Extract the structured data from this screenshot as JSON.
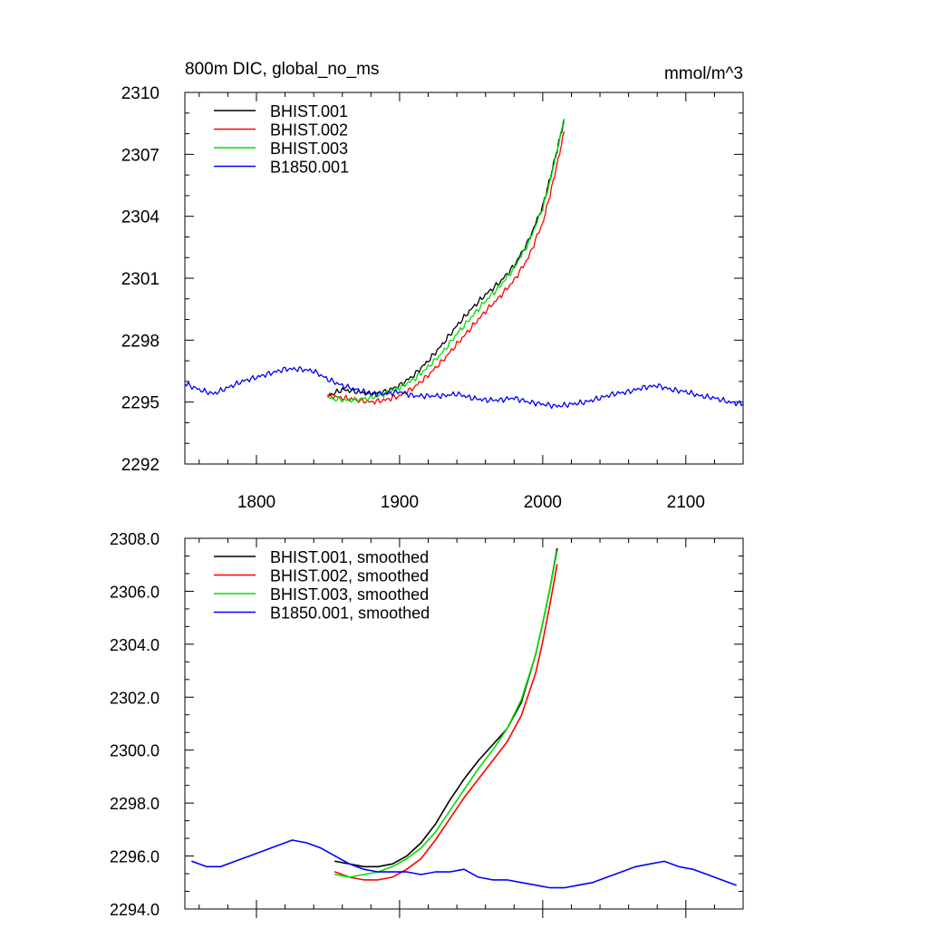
{
  "chart_data": [
    {
      "type": "line",
      "title": "800m DIC, global_no_ms",
      "units": "mmol/m^3",
      "xlim": [
        1750,
        2140
      ],
      "ylim": [
        2292,
        2310
      ],
      "xticks": [
        1800,
        1900,
        2000,
        2100
      ],
      "xtick_labels": [
        "1800",
        "1900",
        "2000",
        "2100"
      ],
      "yticks": [
        2292,
        2295,
        2298,
        2301,
        2304,
        2307,
        2310
      ],
      "ytick_labels": [
        "2292",
        "2295",
        "2298",
        "2301",
        "2304",
        "2307",
        "2310"
      ],
      "legend": "top-left",
      "series": [
        {
          "name": "BHIST.001",
          "color": "#000000",
          "x": [
            1850,
            1860,
            1870,
            1880,
            1890,
            1900,
            1910,
            1920,
            1930,
            1940,
            1950,
            1960,
            1970,
            1980,
            1990,
            2000,
            2005,
            2010,
            2015
          ],
          "y": [
            2295.3,
            2295.6,
            2295.5,
            2295.4,
            2295.5,
            2295.8,
            2296.3,
            2297.0,
            2297.8,
            2298.7,
            2299.5,
            2300.2,
            2300.8,
            2301.6,
            2302.8,
            2304.5,
            2305.8,
            2307.2,
            2308.7
          ]
        },
        {
          "name": "BHIST.002",
          "color": "#ff0000",
          "x": [
            1850,
            1860,
            1870,
            1880,
            1890,
            1900,
            1910,
            1920,
            1930,
            1940,
            1950,
            1960,
            1970,
            1980,
            1990,
            2000,
            2005,
            2010,
            2015
          ],
          "y": [
            2295.3,
            2295.2,
            2295.1,
            2295.0,
            2295.1,
            2295.3,
            2295.7,
            2296.3,
            2297.0,
            2297.8,
            2298.6,
            2299.4,
            2300.1,
            2300.9,
            2302.0,
            2303.7,
            2305.0,
            2306.5,
            2308.1
          ]
        },
        {
          "name": "BHIST.003",
          "color": "#00e000",
          "x": [
            1850,
            1860,
            1870,
            1880,
            1890,
            1900,
            1910,
            1920,
            1930,
            1940,
            1950,
            1960,
            1970,
            1980,
            1990,
            2000,
            2005,
            2010,
            2015
          ],
          "y": [
            2295.2,
            2295.1,
            2295.1,
            2295.2,
            2295.4,
            2295.7,
            2296.1,
            2296.7,
            2297.4,
            2298.3,
            2299.1,
            2299.9,
            2300.6,
            2301.5,
            2302.7,
            2304.4,
            2305.7,
            2307.2,
            2308.7
          ]
        },
        {
          "name": "B1850.001",
          "color": "#0000ff",
          "x": [
            1750,
            1760,
            1770,
            1780,
            1790,
            1800,
            1810,
            1820,
            1830,
            1840,
            1850,
            1860,
            1870,
            1880,
            1890,
            1900,
            1910,
            1920,
            1930,
            1940,
            1950,
            1960,
            1970,
            1980,
            1990,
            2000,
            2010,
            2020,
            2030,
            2040,
            2050,
            2060,
            2070,
            2080,
            2090,
            2100,
            2110,
            2120,
            2130,
            2140
          ],
          "y": [
            2295.9,
            2295.6,
            2295.4,
            2295.7,
            2296.0,
            2296.2,
            2296.4,
            2296.6,
            2296.6,
            2296.5,
            2296.1,
            2295.8,
            2295.6,
            2295.4,
            2295.4,
            2295.5,
            2295.3,
            2295.3,
            2295.3,
            2295.4,
            2295.2,
            2295.1,
            2295.1,
            2295.2,
            2295.0,
            2294.9,
            2294.8,
            2294.9,
            2295.0,
            2295.2,
            2295.4,
            2295.5,
            2295.7,
            2295.8,
            2295.6,
            2295.5,
            2295.3,
            2295.2,
            2295.0,
            2294.9
          ]
        }
      ]
    },
    {
      "type": "line",
      "xlim": [
        1750,
        2140
      ],
      "ylim": [
        2294,
        2308
      ],
      "xticks": [
        1800,
        1900,
        2000,
        2100
      ],
      "xtick_labels": [],
      "yticks": [
        2294,
        2296,
        2298,
        2300,
        2302,
        2304,
        2306,
        2308
      ],
      "ytick_labels": [
        "2294.0",
        "2296.0",
        "2298.0",
        "2300.0",
        "2302.0",
        "2304.0",
        "2306.0",
        "2308.0"
      ],
      "legend": "top-left",
      "series": [
        {
          "name": "BHIST.001, smoothed",
          "color": "#000000",
          "x": [
            1855,
            1865,
            1875,
            1885,
            1895,
            1905,
            1915,
            1925,
            1935,
            1945,
            1955,
            1965,
            1975,
            1985,
            1995,
            2000,
            2005,
            2010
          ],
          "y": [
            2295.8,
            2295.7,
            2295.6,
            2295.6,
            2295.7,
            2296.0,
            2296.5,
            2297.2,
            2298.1,
            2298.9,
            2299.6,
            2300.2,
            2300.8,
            2301.8,
            2303.6,
            2304.8,
            2306.1,
            2307.6
          ]
        },
        {
          "name": "BHIST.002, smoothed",
          "color": "#ff0000",
          "x": [
            1855,
            1865,
            1875,
            1885,
            1895,
            1905,
            1915,
            1925,
            1935,
            1945,
            1955,
            1965,
            1975,
            1985,
            1995,
            2000,
            2005,
            2010
          ],
          "y": [
            2295.4,
            2295.2,
            2295.1,
            2295.1,
            2295.2,
            2295.5,
            2295.9,
            2296.6,
            2297.4,
            2298.2,
            2298.9,
            2299.6,
            2300.3,
            2301.3,
            2302.9,
            2304.1,
            2305.5,
            2307.0
          ]
        },
        {
          "name": "BHIST.003, smoothed",
          "color": "#00e000",
          "x": [
            1855,
            1865,
            1875,
            1885,
            1895,
            1905,
            1915,
            1925,
            1935,
            1945,
            1955,
            1965,
            1975,
            1985,
            1995,
            2000,
            2005,
            2010
          ],
          "y": [
            2295.3,
            2295.2,
            2295.3,
            2295.4,
            2295.6,
            2295.9,
            2296.3,
            2296.9,
            2297.7,
            2298.5,
            2299.3,
            2300.0,
            2300.8,
            2301.9,
            2303.6,
            2304.8,
            2306.1,
            2307.5
          ]
        },
        {
          "name": "B1850.001, smoothed",
          "color": "#0000ff",
          "x": [
            1755,
            1765,
            1775,
            1785,
            1795,
            1805,
            1815,
            1825,
            1835,
            1845,
            1855,
            1865,
            1875,
            1885,
            1895,
            1905,
            1915,
            1925,
            1935,
            1945,
            1955,
            1965,
            1975,
            1985,
            1995,
            2005,
            2015,
            2025,
            2035,
            2045,
            2055,
            2065,
            2075,
            2085,
            2095,
            2105,
            2115,
            2125,
            2135
          ],
          "y": [
            2295.8,
            2295.6,
            2295.6,
            2295.8,
            2296.0,
            2296.2,
            2296.4,
            2296.6,
            2296.5,
            2296.3,
            2296.0,
            2295.7,
            2295.5,
            2295.4,
            2295.4,
            2295.4,
            2295.3,
            2295.4,
            2295.4,
            2295.5,
            2295.2,
            2295.1,
            2295.1,
            2295.0,
            2294.9,
            2294.8,
            2294.8,
            2294.9,
            2295.0,
            2295.2,
            2295.4,
            2295.6,
            2295.7,
            2295.8,
            2295.6,
            2295.5,
            2295.3,
            2295.1,
            2294.9
          ]
        }
      ]
    }
  ]
}
